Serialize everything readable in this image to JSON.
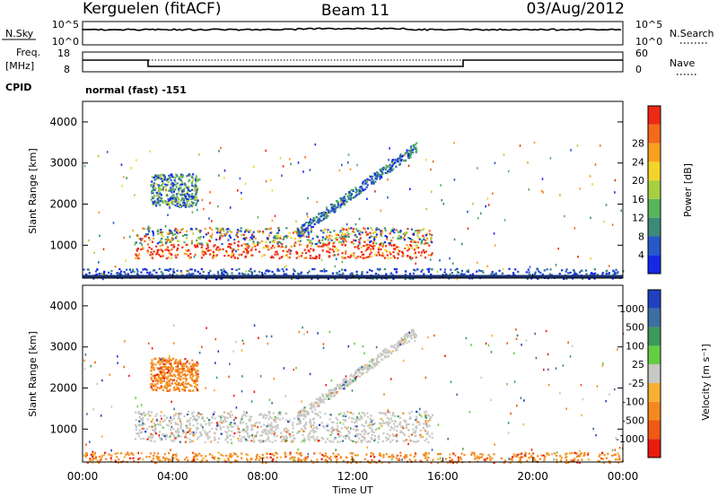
{
  "header": {
    "station": "Kerguelen (fitACF)",
    "beam": "Beam 11",
    "date": "03/Aug/2012"
  },
  "top_panels": {
    "nsky_label": "N.Sky",
    "nsky_ticks": [
      "10^5",
      "10^0"
    ],
    "nsearch_label": "N.Search",
    "nsearch_ticks": [
      "10^5",
      "10^0"
    ],
    "freq_label_line1": "Freq.",
    "freq_label_line2": "[MHz]",
    "freq_ticks": [
      "18",
      "8"
    ],
    "nave_label": "Nave",
    "nave_ticks": [
      "60",
      "0"
    ],
    "cpid_label": "CPID",
    "cpid_value": "normal (fast) -151"
  },
  "chart_data": [
    {
      "type": "heatmap",
      "name_panel": "power",
      "ylabel": "Slant Range [km]",
      "ylim": [
        200,
        4500
      ],
      "yticks": [
        1000,
        2000,
        3000,
        4000
      ],
      "xlim": [
        0,
        24
      ],
      "colorbar_label": "Power [dB]",
      "colorbar_ticks": [
        "4",
        "8",
        "12",
        "16",
        "20",
        "24",
        "28"
      ],
      "colorbar_colors": [
        "#1428e6",
        "#2858c8",
        "#3c8a7a",
        "#58b45a",
        "#a6d040",
        "#f2d42a",
        "#f8a020",
        "#f46a1a",
        "#ee2a14"
      ],
      "features": [
        {
          "label": "main echo band",
          "time_start": 2.3,
          "time_end": 15.5,
          "range_start": 700,
          "range_end": 1450,
          "peak_power_db": 28
        },
        {
          "label": "upper echo patch",
          "time_start": 3.0,
          "time_end": 5.1,
          "range_start": 1950,
          "range_end": 2750,
          "peak_power_db": 16
        },
        {
          "label": "rising arc",
          "time_start": 9.5,
          "time_end": 14.8,
          "range_start": 1300,
          "range_end": 3400,
          "peak_power_db": 12
        },
        {
          "label": "near-range scatter",
          "time_start": 0.0,
          "time_end": 24.0,
          "range_start": 200,
          "range_end": 450,
          "peak_power_db": 8
        }
      ]
    },
    {
      "type": "heatmap",
      "name_panel": "velocity",
      "ylabel": "Slant Range [km]",
      "ylim": [
        200,
        4500
      ],
      "yticks": [
        1000,
        2000,
        3000,
        4000
      ],
      "xlim": [
        0,
        24
      ],
      "xticks": [
        "00:00",
        "04:00",
        "08:00",
        "12:00",
        "16:00",
        "20:00",
        "00:00"
      ],
      "xlabel": "Time UT",
      "colorbar_label": "Velocity [m s⁻¹]",
      "colorbar_ticks": [
        "1000",
        "500",
        "100",
        "25",
        "-25",
        "-100",
        "-500",
        "-1000"
      ],
      "colorbar_colors": [
        "#2040c0",
        "#3c70a0",
        "#3c9a5a",
        "#66cc44",
        "#c8c8c4",
        "#f7b034",
        "#f48a1e",
        "#f05a14",
        "#e81c10"
      ],
      "features": [
        {
          "label": "ground scatter band",
          "time_start": 2.3,
          "time_end": 15.5,
          "range_start": 700,
          "range_end": 1450,
          "velocity_ms": 0
        },
        {
          "label": "upper echo patch",
          "time_start": 3.0,
          "time_end": 5.1,
          "range_start": 1950,
          "range_end": 2750,
          "velocity_ms": -500
        },
        {
          "label": "rising arc",
          "time_start": 9.5,
          "time_end": 14.8,
          "range_start": 1300,
          "range_end": 3400,
          "velocity_ms": 0
        },
        {
          "label": "near-range scatter",
          "time_start": 0.0,
          "time_end": 24.0,
          "range_start": 200,
          "range_end": 450,
          "velocity_ms": -100
        }
      ]
    }
  ]
}
